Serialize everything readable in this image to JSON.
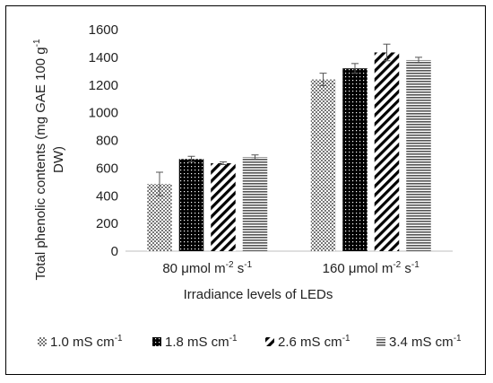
{
  "chart_data": {
    "type": "bar",
    "title": "",
    "xlabel": "Irradiance levels of LEDs",
    "ylabel_line1": "Total phenolic contents (mg GAE 100 g",
    "ylabel_sup": "-1",
    "ylabel_line2": "DW)",
    "ylim": [
      0,
      1600
    ],
    "yticks": [
      0,
      200,
      400,
      600,
      800,
      1000,
      1200,
      1400,
      1600
    ],
    "grid": false,
    "legend_position": "bottom",
    "categories": [
      {
        "label": "80 μmol m",
        "sup1": "-2",
        "mid": " s",
        "sup2": "-1"
      },
      {
        "label": "160 μmol m",
        "sup1": "-2",
        "mid": " s",
        "sup2": "-1"
      }
    ],
    "series": [
      {
        "name": "1.0 mS cm",
        "name_sup": "-1",
        "pattern": "crosshatch",
        "values": [
          485,
          1240
        ],
        "errors": [
          85,
          45
        ]
      },
      {
        "name": "1.8 mS cm",
        "name_sup": "-1",
        "pattern": "dots",
        "values": [
          665,
          1320
        ],
        "errors": [
          20,
          35
        ]
      },
      {
        "name": "2.6 mS cm",
        "name_sup": "-1",
        "pattern": "diagonal",
        "values": [
          635,
          1435
        ],
        "errors": [
          10,
          60
        ]
      },
      {
        "name": "3.4 mS cm",
        "name_sup": "-1",
        "pattern": "horizontal",
        "values": [
          680,
          1380
        ],
        "errors": [
          15,
          20
        ]
      }
    ]
  }
}
